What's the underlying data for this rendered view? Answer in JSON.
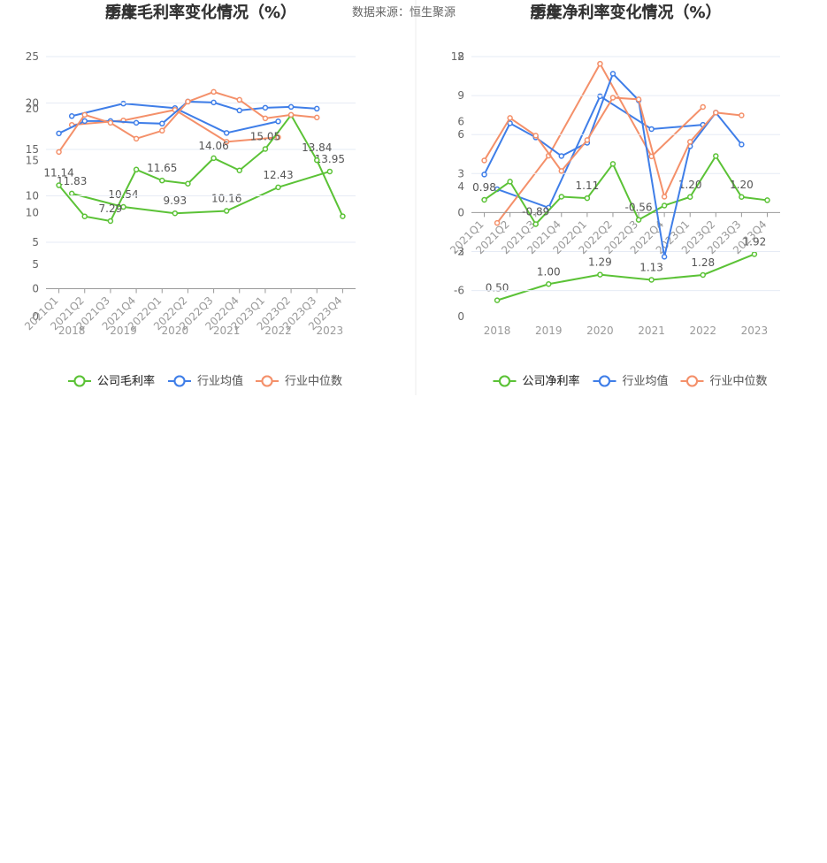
{
  "source": "数据来源：恒生聚源",
  "chart_data": [
    {
      "type": "line",
      "title": "历年毛利率变化情况（%）",
      "categories": [
        "2018",
        "2019",
        "2020",
        "2021",
        "2022",
        "2023"
      ],
      "ylim": [
        0,
        25
      ],
      "yticks": [
        0,
        5,
        10,
        15,
        20
      ],
      "series": [
        {
          "name": "公司毛利率",
          "color": "#5bc236",
          "values": [
            11.83,
            10.54,
            9.93,
            10.16,
            12.43,
            13.95
          ],
          "value_labels": [
            "11.83",
            "10.54",
            "9.93",
            "10.16",
            "12.43",
            "13.95"
          ]
        },
        {
          "name": "行业均值",
          "color": "#3f7ee8",
          "values": [
            19.28,
            20.48,
            20.05,
            17.66,
            18.77,
            null
          ]
        },
        {
          "name": "行业中位数",
          "color": "#f4906a",
          "values": [
            18.43,
            18.86,
            19.88,
            16.81,
            17.24,
            null
          ]
        }
      ]
    },
    {
      "type": "line",
      "title": "季度毛利率变化情况（%）",
      "categories": [
        "2021Q1",
        "2021Q2",
        "2021Q3",
        "2021Q4",
        "2022Q1",
        "2022Q2",
        "2022Q3",
        "2022Q4",
        "2023Q1",
        "2023Q2",
        "2023Q3",
        "2023Q4"
      ],
      "ylim": [
        -3,
        25
      ],
      "yticks": [
        0,
        5,
        10,
        15,
        20,
        25
      ],
      "series": [
        {
          "name": "公司毛利率",
          "color": "#5bc236",
          "values": [
            11.14,
            7.79,
            7.29,
            12.83,
            11.65,
            11.31,
            14.06,
            12.74,
            15.05,
            18.7,
            13.84,
            7.8
          ],
          "value_labels": [
            "11.14",
            null,
            "7.29",
            null,
            "11.65",
            null,
            "14.06",
            null,
            "15.05",
            null,
            "13.84",
            null
          ]
        },
        {
          "name": "行业均值",
          "color": "#3f7ee8",
          "values": [
            16.73,
            18.06,
            18.06,
            17.87,
            17.78,
            20.15,
            20.06,
            19.2,
            19.49,
            19.58,
            19.39,
            null
          ]
        },
        {
          "name": "行业中位数",
          "color": "#f4906a",
          "values": [
            14.73,
            18.73,
            17.87,
            16.16,
            17.02,
            20.15,
            21.2,
            20.34,
            18.35,
            18.73,
            18.44,
            null
          ]
        }
      ]
    },
    {
      "type": "line",
      "title": "历年净利率变化情况（%）",
      "categories": [
        "2018",
        "2019",
        "2020",
        "2021",
        "2022",
        "2023"
      ],
      "ylim": [
        0,
        8
      ],
      "yticks": [
        0,
        2,
        4,
        6,
        8
      ],
      "series": [
        {
          "name": "公司净利率",
          "color": "#5bc236",
          "values": [
            0.5,
            1.0,
            1.29,
            1.13,
            1.28,
            1.92
          ],
          "value_labels": [
            "0.50",
            "1.00",
            "1.29",
            "1.13",
            "1.28",
            "1.92"
          ]
        },
        {
          "name": "行业均值",
          "color": "#3f7ee8",
          "values": [
            3.92,
            3.35,
            6.78,
            5.77,
            5.9,
            null
          ]
        },
        {
          "name": "行业中位数",
          "color": "#f4906a",
          "values": [
            2.88,
            4.95,
            7.78,
            4.93,
            6.45,
            null
          ]
        }
      ]
    },
    {
      "type": "line",
      "title": "季度净利率变化情况（%）",
      "categories": [
        "2021Q1",
        "2021Q2",
        "2021Q3",
        "2021Q4",
        "2022Q1",
        "2022Q2",
        "2022Q3",
        "2022Q4",
        "2023Q1",
        "2023Q2",
        "2023Q3",
        "2023Q4"
      ],
      "ylim": [
        -8,
        12
      ],
      "yticks": [
        -6,
        -3,
        0,
        3,
        6,
        9,
        12
      ],
      "series": [
        {
          "name": "公司净利率",
          "color": "#5bc236",
          "values": [
            0.98,
            2.38,
            -0.89,
            1.22,
            1.11,
            3.74,
            -0.56,
            0.54,
            1.2,
            4.35,
            1.2,
            0.95
          ],
          "value_labels": [
            "0.98",
            null,
            "-0.89",
            null,
            "1.11",
            null,
            "-0.56",
            null,
            "1.20",
            null,
            "1.20",
            null
          ]
        },
        {
          "name": "行业均值",
          "color": "#3f7ee8",
          "values": [
            2.93,
            6.87,
            5.78,
            4.35,
            5.37,
            10.68,
            8.64,
            -3.4,
            5.1,
            7.69,
            5.24,
            null
          ]
        },
        {
          "name": "行业中位数",
          "color": "#f4906a",
          "values": [
            4.01,
            7.28,
            5.92,
            3.2,
            5.58,
            8.84,
            8.71,
            1.22,
            5.44,
            7.69,
            7.48,
            null
          ]
        }
      ]
    }
  ]
}
